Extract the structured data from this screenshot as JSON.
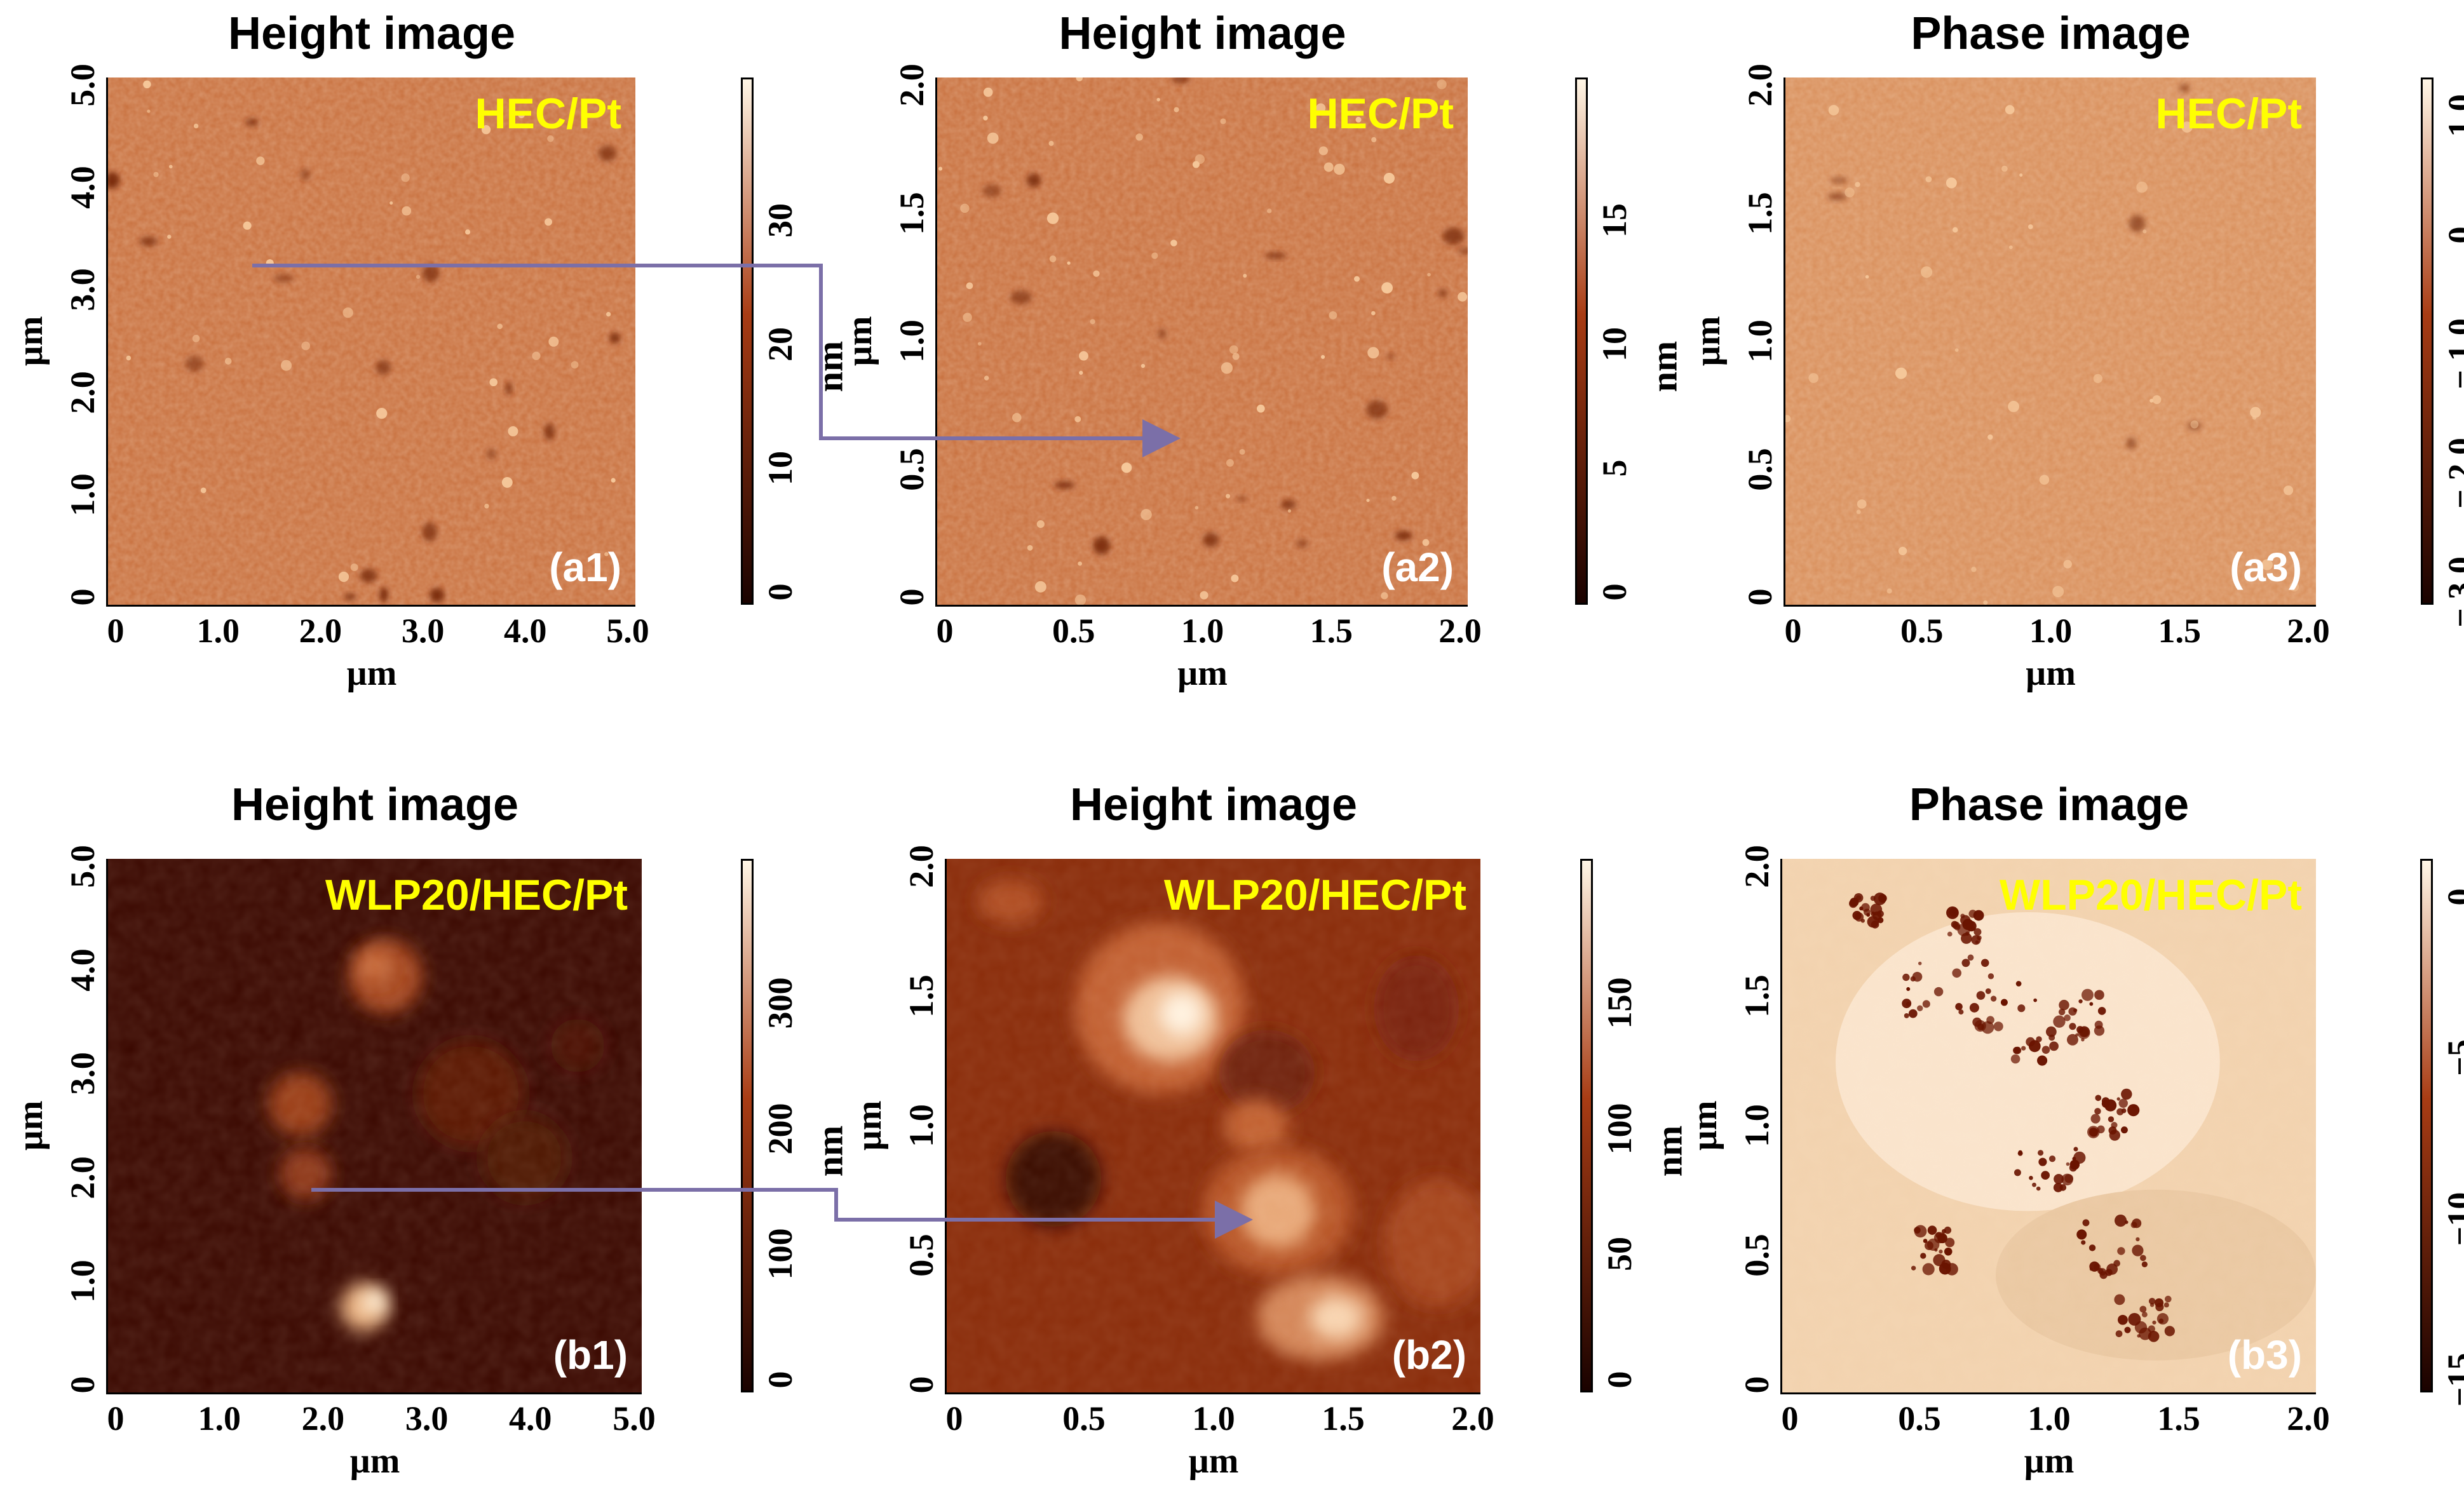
{
  "panels": [
    {
      "id": "a1",
      "title": "Height image",
      "sample": "HEC/Pt",
      "label": "(a1)",
      "type": "height-flat",
      "x_ticks": [
        "0",
        "1.0",
        "2.0",
        "3.0",
        "4.0",
        "5.0"
      ],
      "y_ticks": [
        "0",
        "1.0",
        "2.0",
        "3.0",
        "4.0",
        "5.0"
      ],
      "x_unit": "µm",
      "y_unit": "µm",
      "colorbar": {
        "ticks": [
          "0",
          "10",
          "20",
          "30"
        ],
        "unit": "nm"
      }
    },
    {
      "id": "a2",
      "title": "Height image",
      "sample": "HEC/Pt",
      "label": "(a2)",
      "type": "height-flat",
      "x_ticks": [
        "0",
        "0.5",
        "1.0",
        "1.5",
        "2.0"
      ],
      "y_ticks": [
        "0",
        "0.5",
        "1.0",
        "1.5",
        "2.0"
      ],
      "x_unit": "µm",
      "y_unit": "µm",
      "colorbar": {
        "ticks": [
          "0",
          "5",
          "10",
          "15"
        ],
        "unit": "nm"
      }
    },
    {
      "id": "a3",
      "title": "Phase image",
      "sample": "HEC/Pt",
      "label": "(a3)",
      "type": "phase-flat",
      "x_ticks": [
        "0",
        "0.5",
        "1.0",
        "1.5",
        "2.0"
      ],
      "y_ticks": [
        "0",
        "0.5",
        "1.0",
        "1.5",
        "2.0"
      ],
      "x_unit": "µm",
      "y_unit": "µm",
      "colorbar": {
        "ticks": [
          "− 3.0",
          "− 2.0",
          "− 1.0",
          "0",
          "1.0"
        ],
        "unit": "°"
      }
    },
    {
      "id": "b1",
      "title": "Height image",
      "sample": "WLP20/HEC/Pt",
      "label": "(b1)",
      "type": "height-particles",
      "x_ticks": [
        "0",
        "1.0",
        "2.0",
        "3.0",
        "4.0",
        "5.0"
      ],
      "y_ticks": [
        "0",
        "1.0",
        "2.0",
        "3.0",
        "4.0",
        "5.0"
      ],
      "x_unit": "µm",
      "y_unit": "µm",
      "colorbar": {
        "ticks": [
          "0",
          "100",
          "200",
          "300"
        ],
        "unit": "nm"
      }
    },
    {
      "id": "b2",
      "title": "Height image",
      "sample": "WLP20/HEC/Pt",
      "label": "(b2)",
      "type": "height-zoom",
      "x_ticks": [
        "0",
        "0.5",
        "1.0",
        "1.5",
        "2.0"
      ],
      "y_ticks": [
        "0",
        "0.5",
        "1.0",
        "1.5",
        "2.0"
      ],
      "x_unit": "µm",
      "y_unit": "µm",
      "colorbar": {
        "ticks": [
          "0",
          "50",
          "100",
          "150"
        ],
        "unit": "nm"
      }
    },
    {
      "id": "b3",
      "title": "Phase image",
      "sample": "WLP20/HEC/Pt",
      "label": "(b3)",
      "type": "phase-particles",
      "x_ticks": [
        "0",
        "0.5",
        "1.0",
        "1.5",
        "2.0"
      ],
      "y_ticks": [
        "0",
        "0.5",
        "1.0",
        "1.5",
        "2.0"
      ],
      "x_unit": "µm",
      "y_unit": "µm",
      "colorbar": {
        "ticks": [
          "−15",
          "−10",
          "−5",
          "0"
        ],
        "unit": "°"
      }
    }
  ],
  "colors": {
    "afm_dark": "#1a0200",
    "afm_mid": "#a83c14",
    "afm_light": "#fff6e6",
    "sample_text": "#ffff00",
    "arrow": "#7b6fa8"
  }
}
